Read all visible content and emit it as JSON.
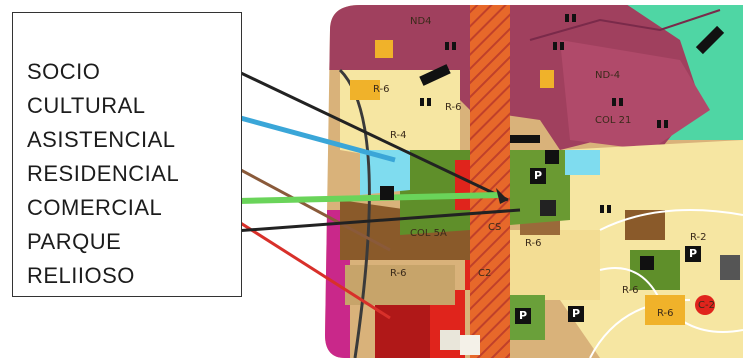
{
  "legend": {
    "items": [
      "SOCIO",
      "CULTURAL",
      "ASISTENCIAL",
      "RESIDENCIAL",
      "COMERCIAL",
      "PARQUE",
      "RELIIOSO"
    ]
  },
  "map": {
    "zone_labels": {
      "nd4_top": "ND4",
      "nd4_right": "ND-4",
      "r6_a": "R-6",
      "r6_b": "R-6",
      "r6_c": "R-6",
      "r6_d": "R-6",
      "r6_e": "R-6",
      "r6_f": "R-6",
      "r4": "R-4",
      "r2": "R-2",
      "col_21": "COL 21",
      "col_5a": "COL 5A",
      "cs": "CS",
      "c2": "C2",
      "c2_b": "C-2"
    },
    "parking_symbol": "P",
    "colors": {
      "residential_pink": "#a0405e",
      "residential_yellow": "#f6e6a2",
      "commercial_red": "#e0241c",
      "park_green": "#5f8f2a",
      "assist_cyan": "#7fdcef",
      "brown": "#8a5a2a",
      "light_green_bg": "#4fd6a4",
      "corridor_orange": "#e7682a",
      "magenta": "#c9288a"
    },
    "pointer_colors": {
      "socio": "#222222",
      "cultural": "#3aa6d8",
      "asistencial": "#8a5a3a",
      "residencial": "#d8302a",
      "comercial": "#6ad45a",
      "parque": "#222222"
    }
  }
}
